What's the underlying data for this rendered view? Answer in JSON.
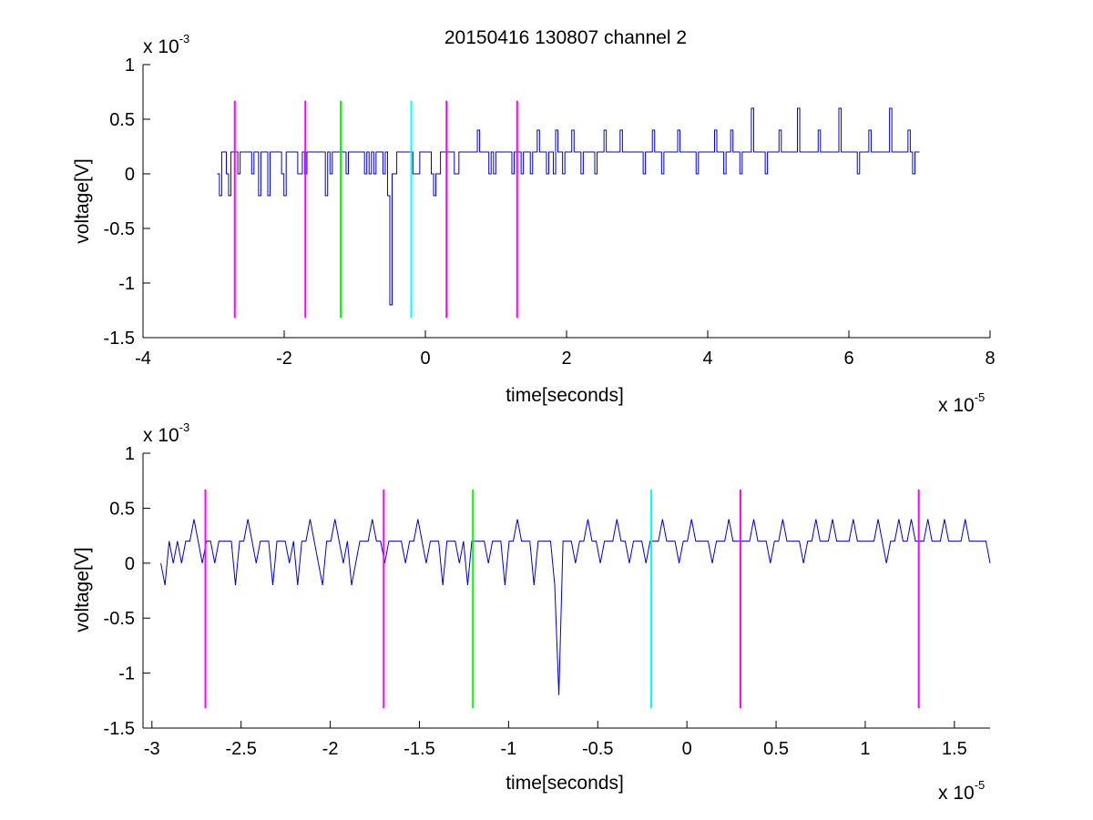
{
  "chart_data": [
    {
      "type": "line",
      "title": "20150416 130807 channel 2",
      "xlabel": "time[seconds]",
      "ylabel": "voltage[V]",
      "x_exponent_label": "x 10",
      "x_exponent": "-5",
      "y_exponent_label": "x 10",
      "y_exponent": "-3",
      "xlim": [
        -4e-05,
        8e-05
      ],
      "ylim": [
        -0.0015,
        0.001
      ],
      "xticks": [
        -4e-05,
        -2e-05,
        0,
        2e-05,
        4e-05,
        6e-05,
        8e-05
      ],
      "xtick_labels": [
        "-4",
        "-2",
        "0",
        "2",
        "4",
        "6",
        "8"
      ],
      "yticks": [
        -0.0015,
        -0.001,
        -0.0005,
        0,
        0.0005,
        0.001
      ],
      "ytick_labels": [
        "-1.5",
        "-1",
        "-0.5",
        "0",
        "0.5",
        "1"
      ],
      "grid": false,
      "series": [
        {
          "color": "#0000cc",
          "style": "step",
          "x_range": [
            -2.95e-05,
            7e-05
          ],
          "values": [
            0,
            -0.0002,
            0.0002,
            0.0002,
            0,
            -0.0002,
            0.0002,
            0.0002,
            0.0002,
            0,
            0.0002,
            0.0002,
            0.0002,
            0.0002,
            0.0002,
            0,
            0.0002,
            0.0002,
            -0.0002,
            0.0002,
            0.0002,
            0.0002,
            -0.0002,
            0.0002,
            0.0002,
            0.0002,
            0.0002,
            0.0002,
            0,
            -0.0002,
            0.0002,
            0.0002,
            0.0002,
            0.0002,
            0.0002,
            0,
            0,
            0.0002,
            0,
            0.0002,
            0.0002,
            0.0002,
            0.0002,
            0.0002,
            0.0002,
            0.0002,
            0.0002,
            -0.0002,
            0.0002,
            0,
            0.0002,
            0.0002,
            0.0002,
            0.0002,
            0.0002,
            0.0002,
            0,
            0.0002,
            0.0002,
            0.0002,
            0.0002,
            0.0002,
            0.0002,
            0.0002,
            0,
            0.0002,
            0,
            0.0002,
            0,
            0.0002,
            0.0002,
            0.0002,
            0,
            0.0002,
            -0.0002,
            -0.0012,
            0,
            0,
            0.0002,
            0.0002,
            0.0002,
            0.0002,
            0.0002,
            0.0002,
            0.0002,
            0,
            0,
            0,
            0.0002,
            0.0002,
            0.0002,
            0.0002,
            0.0002,
            0,
            -0.0002,
            0,
            0,
            0.0002,
            0.0002,
            0.0002,
            0.0002,
            0.0002,
            0.0002,
            0,
            0,
            0.0002,
            0.0002,
            0.0002,
            0.0002,
            0.0002,
            0.0002,
            0.0002,
            0.0002,
            0.0004,
            0.0002,
            0.0002,
            0.0002,
            0.0002,
            0,
            0.0002,
            0,
            0.0002,
            0.0002,
            0.0002,
            0.0002,
            0.0002,
            0.0002,
            0.0002,
            0,
            0.0002,
            0.0002,
            0.0002,
            0,
            0.0002,
            0.0002,
            0.0002,
            0,
            0.0002,
            0.0002,
            0.0004,
            0.0002,
            0.0002,
            0.0002,
            0,
            0.0002,
            0.0002,
            0,
            0.0004,
            0.0002,
            0.0002,
            0,
            0.0002,
            0.0002,
            0.0002,
            0.0004,
            0.0002,
            0.0002,
            0.0002,
            0,
            0.0002,
            0.0002,
            0.0002,
            0.0002,
            0.0002,
            0,
            0.0002,
            0.0002,
            0.0002,
            0.0004,
            0.0002,
            0.0002,
            0.0002,
            0.0002,
            0.0002,
            0.0002,
            0.0004,
            0.0002,
            0.0002,
            0.0002,
            0.0002,
            0.0002,
            0.0002,
            0.0002,
            0.0002,
            0.0002,
            0,
            0.0002,
            0.0002,
            0.0002,
            0.0004,
            0.0002,
            0.0002,
            0.0002,
            0,
            0.0002,
            0.0002,
            0.0002,
            0.0002,
            0.0002,
            0.0002,
            0.0004,
            0.0002,
            0.0002,
            0.0002,
            0.0002,
            0.0002,
            0.0002,
            0.0002,
            0,
            0.0002,
            0.0002,
            0.0002,
            0.0002,
            0.0002,
            0.0002,
            0.0002,
            0.0004,
            0.0002,
            0.0002,
            0.0002,
            0,
            0.0002,
            0.0002,
            0.0004,
            0.0002,
            0.0002,
            0.0002,
            0,
            0.0002,
            0.0002,
            0.0002,
            0.0002,
            0.0006,
            0.0002,
            0.0002,
            0.0002,
            0.0002,
            0.0002,
            0,
            0.0002,
            0.0002,
            0.0002,
            0.0002,
            0.0002,
            0.0004,
            0.0002,
            0.0002,
            0.0002,
            0.0002,
            0.0002,
            0.0002,
            0.0002,
            0.0006,
            0.0002,
            0.0002,
            0.0002,
            0.0002,
            0.0002,
            0.0002,
            0.0002,
            0.0002,
            0.0004,
            0.0002,
            0.0002,
            0.0002,
            0.0002,
            0.0002,
            0.0002,
            0.0002,
            0.0002,
            0.0006,
            0.0002,
            0.0002,
            0.0002,
            0.0002,
            0.0002,
            0.0002,
            0.0002,
            0,
            0.0002,
            0.0002,
            0.0002,
            0.0002,
            0.0004,
            0.0002,
            0.0002,
            0.0002,
            0.0002,
            0.0002,
            0.0002,
            0.0002,
            0.0002,
            0.0006,
            0.0002,
            0.0002,
            0.0002,
            0.0002,
            0.0002,
            0.0002,
            0.0002,
            0.0004,
            0.0002,
            0,
            0.0002,
            0.0002,
            0.0002
          ]
        }
      ],
      "markers": [
        {
          "x": -2.7e-05,
          "color": "#ff00ff"
        },
        {
          "x": -1.7e-05,
          "color": "#ff00ff"
        },
        {
          "x": -1.2e-05,
          "color": "#00ff00"
        },
        {
          "x": -2e-06,
          "color": "#00ffff"
        },
        {
          "x": 3e-06,
          "color": "#ff00ff"
        },
        {
          "x": 1.3e-05,
          "color": "#ff00ff"
        }
      ],
      "marker_yrange": [
        -0.00132,
        0.00067
      ]
    },
    {
      "type": "line",
      "title": "",
      "xlabel": "time[seconds]",
      "ylabel": "voltage[V]",
      "x_exponent_label": "x 10",
      "x_exponent": "-5",
      "y_exponent_label": "x 10",
      "y_exponent": "-3",
      "xlim": [
        -3.05e-05,
        1.7e-05
      ],
      "ylim": [
        -0.0015,
        0.001
      ],
      "xticks": [
        -3e-05,
        -2.5e-05,
        -2e-05,
        -1.5e-05,
        -1e-05,
        -5e-06,
        0,
        5e-06,
        1e-05,
        1.5e-05
      ],
      "xtick_labels": [
        "-3",
        "-2.5",
        "-2",
        "-1.5",
        "-1",
        "-0.5",
        "0",
        "0.5",
        "1",
        "1.5"
      ],
      "yticks": [
        -0.0015,
        -0.001,
        -0.0005,
        0,
        0.0005,
        0.001
      ],
      "ytick_labels": [
        "-1.5",
        "-1",
        "-0.5",
        "0",
        "0.5",
        "1"
      ],
      "grid": false,
      "series": [
        {
          "color": "#0000cc",
          "style": "line",
          "x_range": [
            -2.95e-05,
            1.7e-05
          ],
          "values": [
            0,
            -0.0002,
            0.0002,
            0,
            0.0002,
            0,
            0.0002,
            0.0002,
            0.0004,
            0.0002,
            0,
            0.0002,
            0.0002,
            0,
            0.0002,
            0.0002,
            0.0002,
            0.0002,
            -0.0002,
            0.0002,
            0.0002,
            0.0004,
            0.0002,
            0,
            0.0002,
            0.0002,
            0.0002,
            -0.0002,
            0.0002,
            0.0002,
            0.0002,
            0,
            0.0002,
            -0.0002,
            0.0002,
            0.0002,
            0.0004,
            0.0002,
            0,
            -0.0002,
            0.0002,
            0.0002,
            0.0004,
            0.0002,
            0,
            0.0002,
            -0.0002,
            0,
            0.0002,
            0.0002,
            0.0002,
            0.0004,
            0.0002,
            0.0002,
            0,
            0.0002,
            0.0002,
            0.0002,
            0.0002,
            0,
            0.0002,
            0.0002,
            0.0004,
            0.0002,
            0,
            0.0002,
            0.0002,
            0.0002,
            -0.0002,
            0.0002,
            0.0002,
            0.0002,
            0,
            0.0002,
            -0.0002,
            0.0002,
            0.0002,
            0.0002,
            0.0002,
            0,
            0.0002,
            0.0002,
            0.0002,
            -0.0002,
            0.0002,
            0.0002,
            0.0004,
            0.0002,
            0.0002,
            0.0002,
            -0.0002,
            0.0002,
            0.0002,
            0.0002,
            0.0002,
            -0.0002,
            -0.0012,
            0.0002,
            0.0002,
            0.0002,
            0,
            0.0002,
            0.0002,
            0.0004,
            0.0002,
            0.0002,
            0,
            0.0002,
            0.0002,
            0.0002,
            0.0004,
            0.0002,
            0.0002,
            0,
            0.0002,
            0.0002,
            0.0002,
            0,
            0.0002,
            0.0002,
            0.0002,
            0.0004,
            0.0002,
            0.0002,
            0.0002,
            0,
            0.0002,
            0.0002,
            0.0004,
            0.0002,
            0.0002,
            0.0002,
            0.0002,
            0,
            0.0002,
            0.0002,
            0.0002,
            0.0004,
            0.0002,
            0.0002,
            0.0002,
            0.0002,
            0.0002,
            0.0004,
            0.0002,
            0.0002,
            0.0002,
            0,
            0.0002,
            0.0002,
            0.0004,
            0.0002,
            0.0002,
            0.0002,
            0.0002,
            0,
            0.0002,
            0.0002,
            0.0004,
            0.0002,
            0.0002,
            0.0002,
            0.0004,
            0.0002,
            0.0002,
            0.0002,
            0.0002,
            0.0004,
            0.0002,
            0.0002,
            0.0002,
            0.0002,
            0.0002,
            0.0004,
            0.0002,
            0,
            0.0002,
            0.0002,
            0.0004,
            0.0002,
            0.0002,
            0.0004,
            0.0002,
            0.0002,
            0.0002,
            0.0004,
            0.0002,
            0.0002,
            0.0002,
            0.0004,
            0.0002,
            0.0002,
            0.0002,
            0.0002,
            0.0004,
            0.0002,
            0.0002,
            0.0002,
            0.0002,
            0.0002,
            0
          ]
        }
      ],
      "markers": [
        {
          "x": -2.7e-05,
          "color": "#ff00ff"
        },
        {
          "x": -1.7e-05,
          "color": "#ff00ff"
        },
        {
          "x": -1.2e-05,
          "color": "#00ff00"
        },
        {
          "x": -2e-06,
          "color": "#00ffff"
        },
        {
          "x": 3e-06,
          "color": "#ff00ff"
        },
        {
          "x": 1.3e-05,
          "color": "#ff00ff"
        }
      ],
      "marker_yrange": [
        -0.00132,
        0.00067
      ]
    }
  ]
}
